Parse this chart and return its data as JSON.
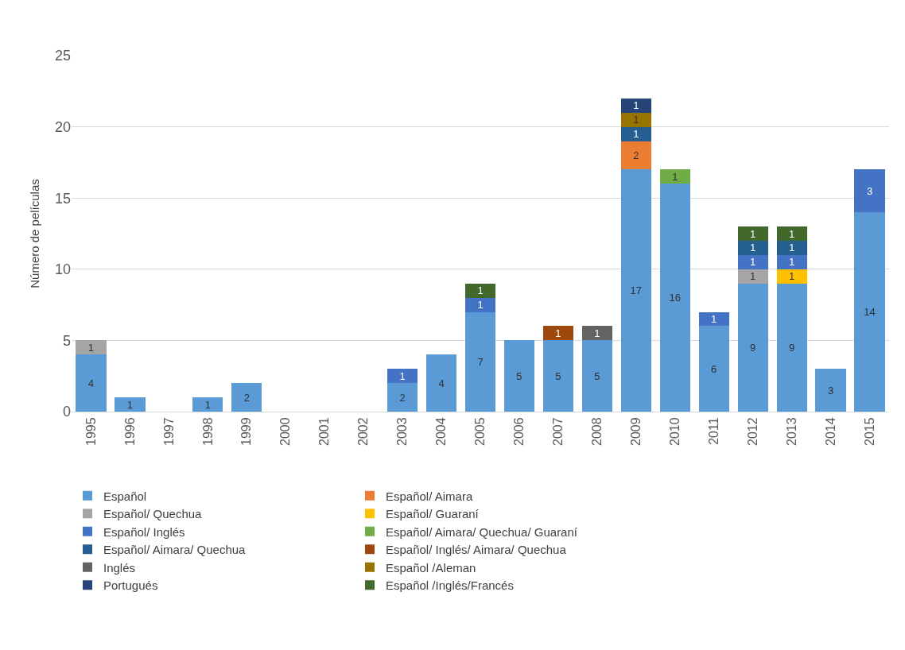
{
  "chart_data": {
    "type": "bar",
    "stacked": true,
    "ylabel": "Número de películas",
    "categories": [
      "1995",
      "1996",
      "1997",
      "1998",
      "1999",
      "2000",
      "2001",
      "2002",
      "2003",
      "2004",
      "2005",
      "2006",
      "2007",
      "2008",
      "2009",
      "2010",
      "2011",
      "2012",
      "2013",
      "2014",
      "2015"
    ],
    "series": [
      {
        "name": "Español",
        "color": "#5b9bd5",
        "values": [
          4,
          1,
          null,
          1,
          2,
          null,
          null,
          null,
          2,
          4,
          7,
          5,
          5,
          5,
          17,
          16,
          6,
          9,
          9,
          3,
          14
        ]
      },
      {
        "name": "Español/ Aimara",
        "color": "#ed7d31",
        "values": [
          null,
          null,
          null,
          null,
          null,
          null,
          null,
          null,
          null,
          null,
          null,
          null,
          null,
          null,
          2,
          null,
          null,
          null,
          null,
          null,
          null
        ]
      },
      {
        "name": "Español/ Quechua",
        "color": "#a5a5a5",
        "values": [
          1,
          null,
          null,
          null,
          null,
          null,
          null,
          null,
          null,
          null,
          null,
          null,
          null,
          null,
          null,
          null,
          null,
          1,
          null,
          null,
          null
        ]
      },
      {
        "name": "Español/ Guaraní",
        "color": "#ffc000",
        "values": [
          null,
          null,
          null,
          null,
          null,
          null,
          null,
          null,
          null,
          null,
          null,
          null,
          null,
          null,
          null,
          null,
          null,
          null,
          1,
          null,
          null
        ]
      },
      {
        "name": "Español/ Inglés",
        "color": "#4472c4",
        "values": [
          null,
          null,
          null,
          null,
          null,
          null,
          null,
          null,
          1,
          null,
          1,
          null,
          null,
          null,
          null,
          null,
          1,
          1,
          1,
          null,
          3
        ]
      },
      {
        "name": "Español/ Aimara/ Quechua/ Guaraní",
        "color": "#70ad47",
        "values": [
          null,
          null,
          null,
          null,
          null,
          null,
          null,
          null,
          null,
          null,
          null,
          null,
          null,
          null,
          null,
          1,
          null,
          null,
          null,
          null,
          null
        ]
      },
      {
        "name": "Español/ Aimara/ Quechua",
        "color": "#255e91",
        "values": [
          null,
          null,
          null,
          null,
          null,
          null,
          null,
          null,
          null,
          null,
          null,
          null,
          null,
          null,
          1,
          null,
          null,
          1,
          1,
          null,
          null
        ]
      },
      {
        "name": "Español/ Inglés/ Aimara/ Quechua",
        "color": "#9e480e",
        "values": [
          null,
          null,
          null,
          null,
          null,
          null,
          null,
          null,
          null,
          null,
          null,
          null,
          1,
          null,
          null,
          null,
          null,
          null,
          null,
          null,
          null
        ]
      },
      {
        "name": "Inglés",
        "color": "#636363",
        "values": [
          null,
          null,
          null,
          null,
          null,
          null,
          null,
          null,
          null,
          null,
          null,
          null,
          null,
          1,
          null,
          null,
          null,
          null,
          null,
          null,
          null
        ]
      },
      {
        "name": "Español /Aleman",
        "color": "#997300",
        "values": [
          null,
          null,
          null,
          null,
          null,
          null,
          null,
          null,
          null,
          null,
          null,
          null,
          null,
          null,
          1,
          null,
          null,
          null,
          null,
          null,
          null
        ]
      },
      {
        "name": "Portugués",
        "color": "#264478",
        "values": [
          null,
          null,
          null,
          null,
          null,
          null,
          null,
          null,
          null,
          null,
          null,
          null,
          null,
          null,
          1,
          null,
          null,
          null,
          null,
          null,
          null
        ]
      },
      {
        "name": "Español /Inglés/Francés",
        "color": "#43682b",
        "values": [
          null,
          null,
          null,
          null,
          null,
          null,
          null,
          null,
          null,
          null,
          1,
          null,
          null,
          null,
          null,
          null,
          null,
          1,
          1,
          null,
          null
        ]
      }
    ],
    "ylim": [
      0,
      25
    ],
    "yticks": [
      0,
      5,
      10,
      15,
      20,
      25
    ],
    "grid": "y",
    "legend": "bottom",
    "data_labels": true
  }
}
